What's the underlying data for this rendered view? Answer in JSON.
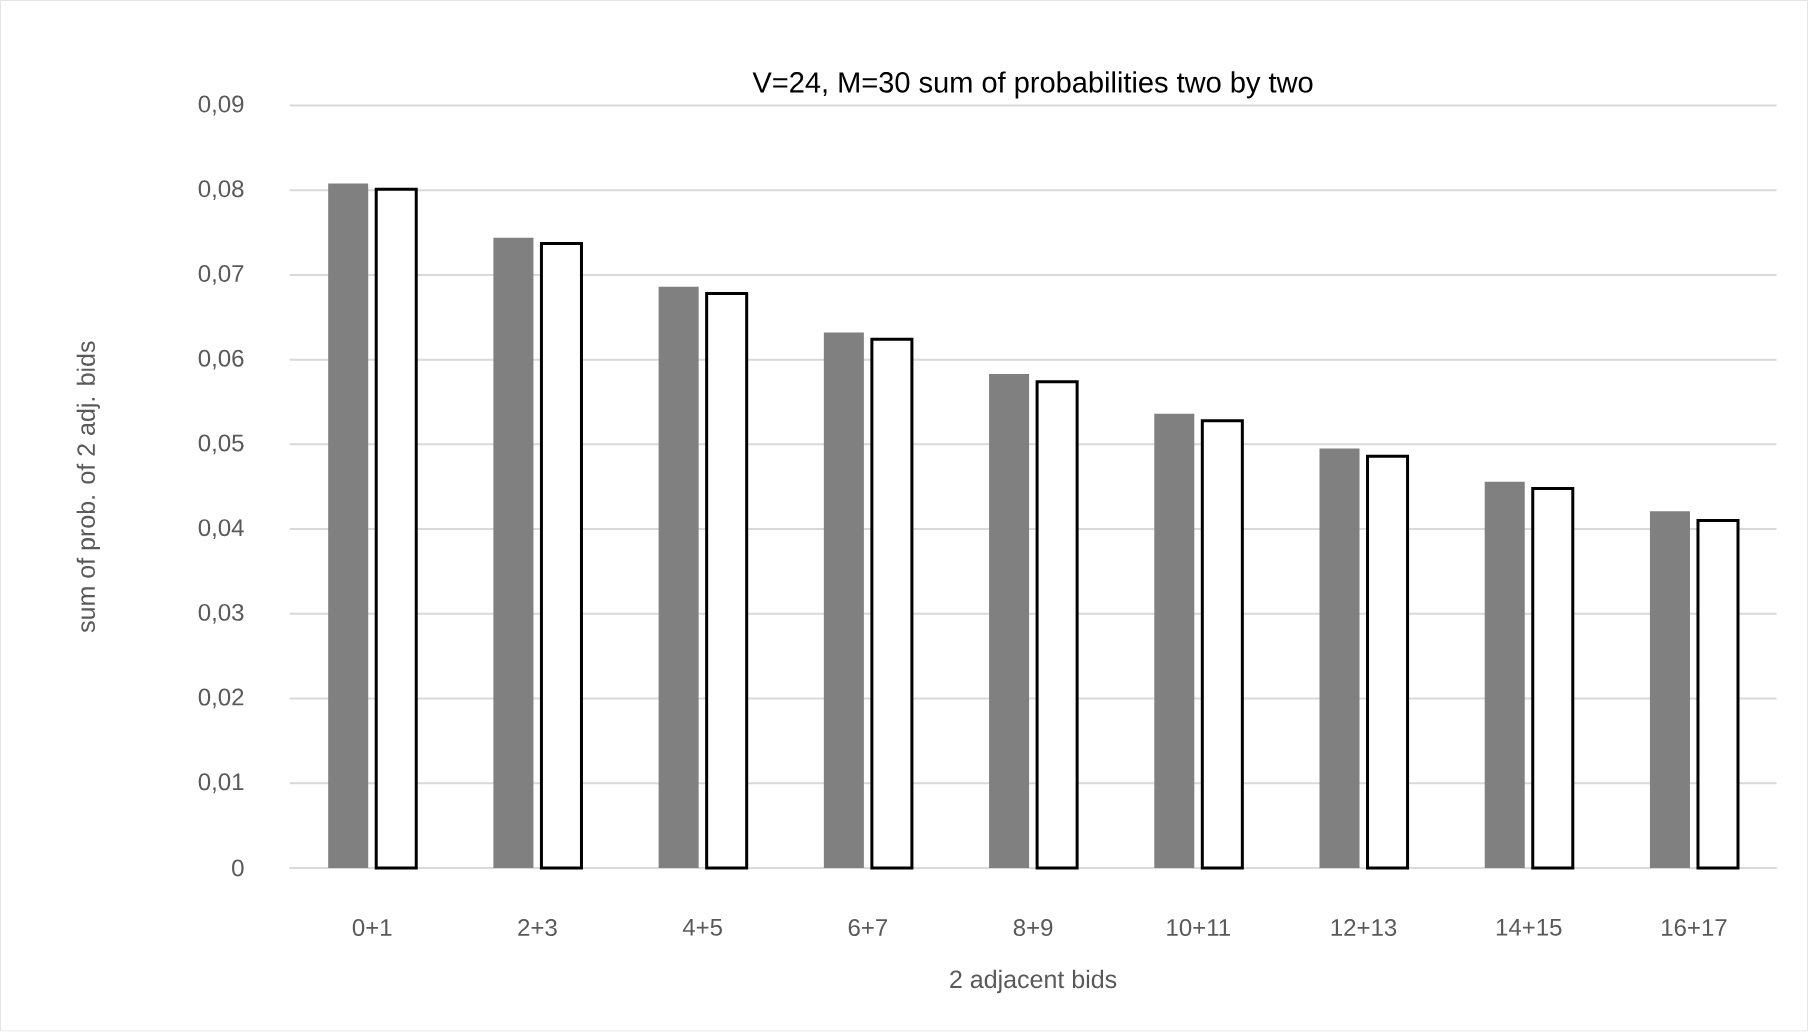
{
  "chart_data": {
    "type": "bar",
    "title": "V=24, M=30 sum of probabilities two by two",
    "xlabel": "2 adjacent bids",
    "ylabel": "sum of prob. of 2 adj. bids",
    "categories": [
      "0+1",
      "2+3",
      "4+5",
      "6+7",
      "8+9",
      "10+11",
      "12+13",
      "14+15",
      "16+17"
    ],
    "series": [
      {
        "color": "#808080",
        "values": [
          0.0808,
          0.0744,
          0.0686,
          0.0632,
          0.0583,
          0.0536,
          0.0495,
          0.0456,
          0.0421
        ]
      },
      {
        "color": "#000000",
        "values": [
          0.0801,
          0.0737,
          0.0678,
          0.0624,
          0.0574,
          0.0528,
          0.0486,
          0.0448,
          0.041
        ]
      }
    ],
    "ylim": [
      0,
      0.09
    ],
    "yticks": [
      0,
      {
        "value": 0.01,
        "label": "0,01"
      },
      {
        "value": 0.02,
        "label": "0,02"
      },
      {
        "value": 0.03,
        "label": "0,03"
      },
      {
        "value": 0.04,
        "label": "0,04"
      },
      {
        "value": 0.05,
        "label": "0,05"
      },
      {
        "value": 0.06,
        "label": "0,06"
      },
      {
        "value": 0.07,
        "label": "0,07"
      },
      {
        "value": 0.08,
        "label": "0,08"
      },
      {
        "value": 0.09,
        "label": "0,09"
      }
    ],
    "grid": "y"
  }
}
